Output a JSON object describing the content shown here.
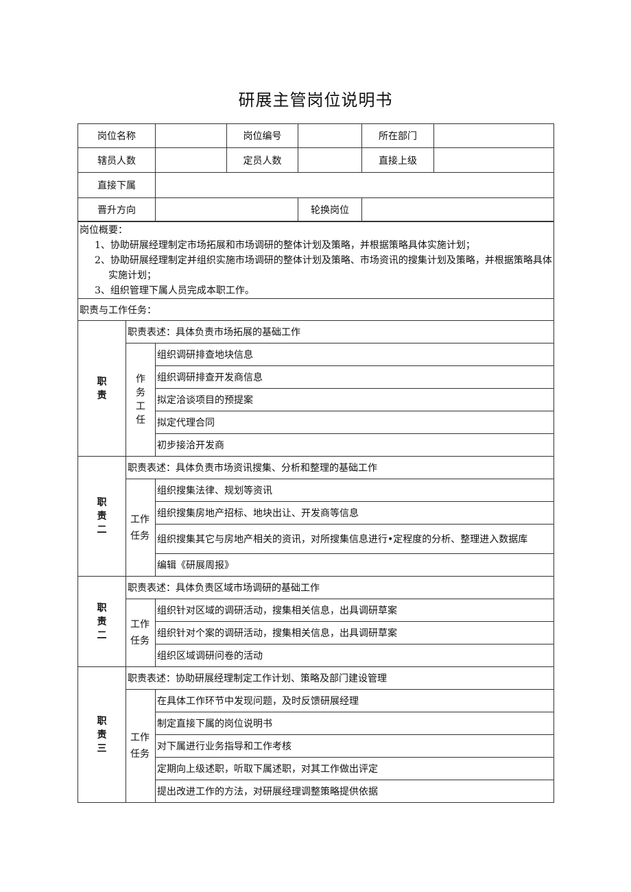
{
  "title": "研展主管岗位说明书",
  "header": {
    "row1": [
      "岗位名称",
      "",
      "岗位编号",
      "",
      "所在部门",
      ""
    ],
    "row2": [
      "辖员人数",
      "",
      "定员人数",
      "",
      "直接上级",
      ""
    ],
    "row3": [
      "直接下属",
      ""
    ],
    "row4": [
      "晋升方向",
      "",
      "轮换岗位",
      ""
    ]
  },
  "summary": {
    "heading": "岗位概要：",
    "items": [
      "1、协助研展经理制定市场拓展和市场调研的整体计划及策略，并根据策略具体实施计划；",
      "2、协助研展经理制定并组织实施市场调研的整体计划及策略、市场资讯的搜集计划及策略，并根据策略具体实施计划；",
      "3、组织管理下属人员完成本职工作。"
    ]
  },
  "duties_heading": "职责与工作任务：",
  "duties": [
    {
      "label": "职责",
      "task_label": "作务工任",
      "statement": "职责表述：具体负责市场拓展的基础工作",
      "tasks": [
        "组织调研排查地块信息",
        "组织调研排查开发商信息",
        "拟定洽谈项目的预提案",
        "拟定代理合同",
        "初步接洽开发商"
      ]
    },
    {
      "label": "职责二",
      "task_label": "工作任务",
      "statement": "职责表述：具体负责市场资讯搜集、分析和整理的基础工作",
      "tasks": [
        "组织搜集法律、规划等资讯",
        "组织搜集房地产招标、地块出让、开发商等信息",
        "组织搜集其它与房地产相关的资讯，对所搜集信息进行•定程度的分析、整理进入数据库",
        "编辑《研展周报》"
      ]
    },
    {
      "label": "职责二",
      "task_label": "工作任务",
      "statement": "职责表述：具体负责区域市场调研的基础工作",
      "tasks": [
        "组织针对区域的调研活动，搜集相关信息，出具调研草案",
        "组织针对个案的调研活动，搜集相关信息，出具调研草案",
        "组织区域调研问卷的活动"
      ]
    },
    {
      "label": "职责三",
      "task_label": "工作任务",
      "statement": "职责表述：协助研展经理制定工作计划、策略及部门建设管理",
      "tasks": [
        "在具体工作环节中发现问题，及时反馈研展经理",
        "制定直接下属的岗位说明书",
        "对下属进行业务指导和工作考核",
        "定期向上级述职，听取下属述职，对其工作做出评定",
        "提出改进工作的方法，对研展经理调整策略提供依据"
      ]
    }
  ]
}
